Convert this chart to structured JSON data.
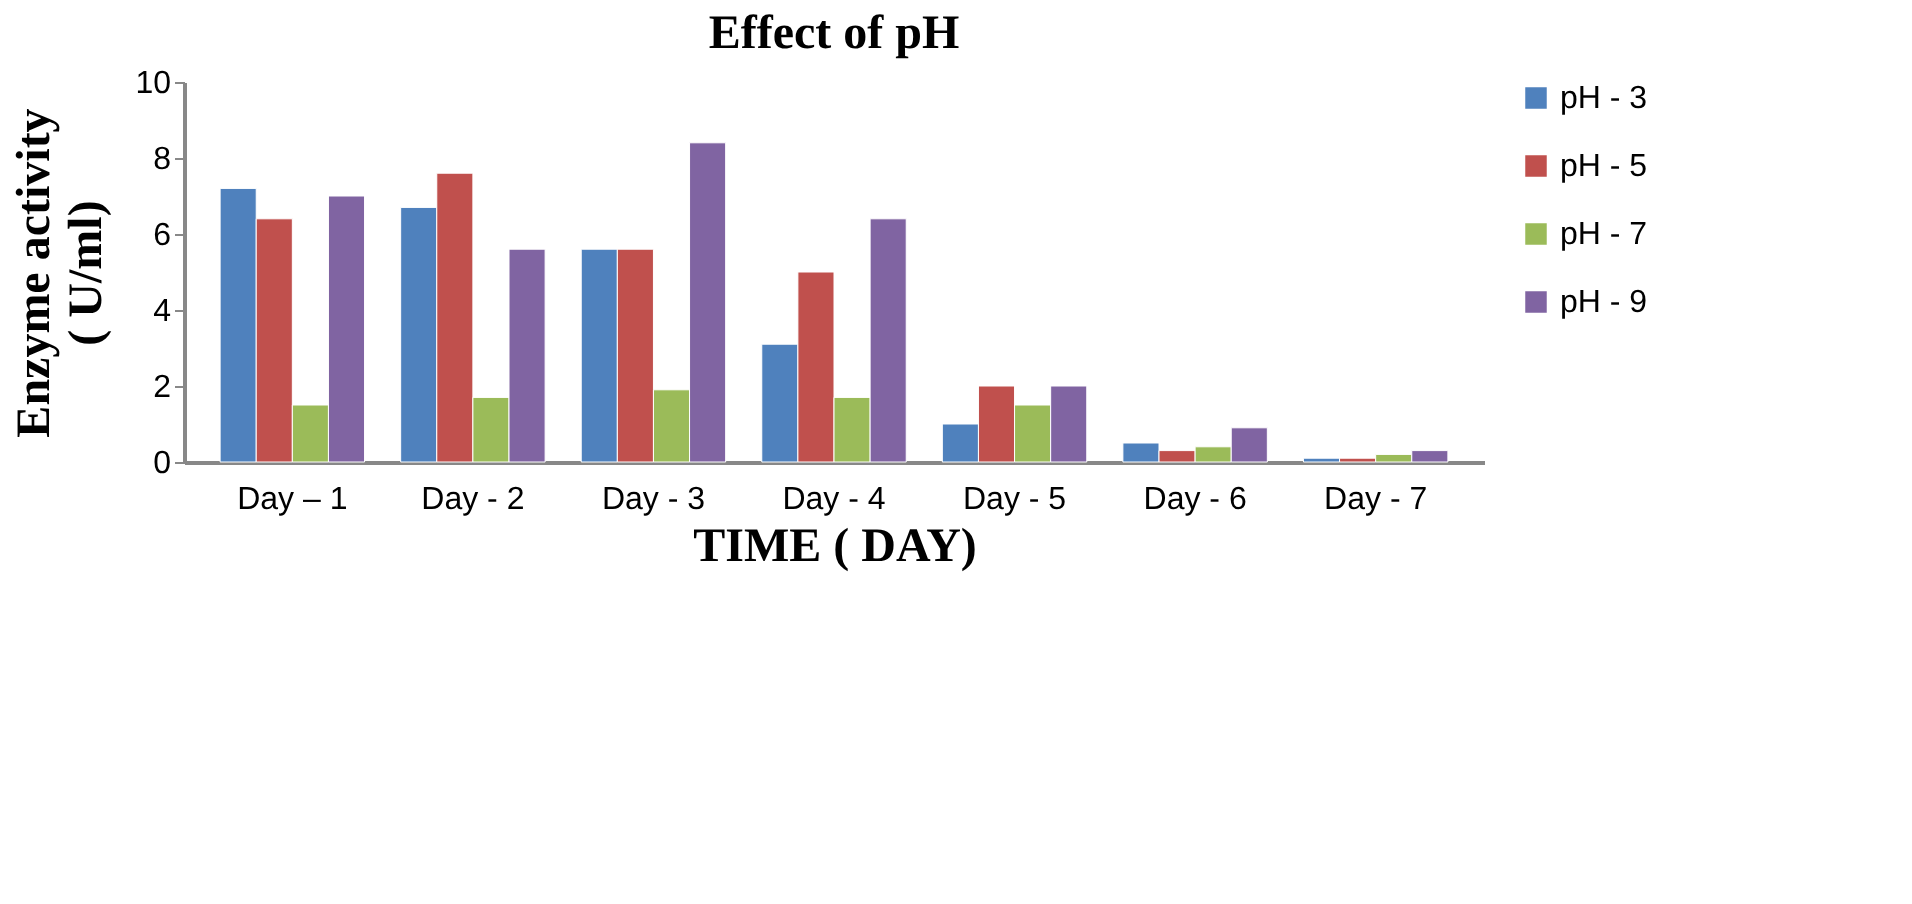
{
  "chart_data": {
    "type": "bar",
    "title": "Effect of pH",
    "xlabel": "TIME ( DAY)",
    "ylabel": "Enzyme activity\n( U/ml)",
    "categories": [
      "Day – 1",
      "Day - 2",
      "Day - 3",
      "Day - 4",
      "Day - 5",
      "Day - 6",
      "Day - 7"
    ],
    "series": [
      {
        "name": "pH - 3",
        "color": "#4f81bd",
        "values": [
          7.2,
          6.7,
          5.6,
          3.1,
          1.0,
          0.5,
          0.1
        ]
      },
      {
        "name": "pH - 5",
        "color": "#c0504d",
        "values": [
          6.4,
          7.6,
          5.6,
          5.0,
          2.0,
          0.3,
          0.1
        ]
      },
      {
        "name": "pH - 7",
        "color": "#9bbb59",
        "values": [
          1.5,
          1.7,
          1.9,
          1.7,
          1.5,
          0.4,
          0.2
        ]
      },
      {
        "name": "pH - 9",
        "color": "#8064a2",
        "values": [
          7.0,
          5.6,
          8.4,
          6.4,
          2.0,
          0.9,
          0.3
        ]
      }
    ],
    "ylim": [
      0,
      10
    ],
    "yticks": [
      0,
      2,
      4,
      6,
      8,
      10
    ],
    "grid": false,
    "legend": "right"
  }
}
